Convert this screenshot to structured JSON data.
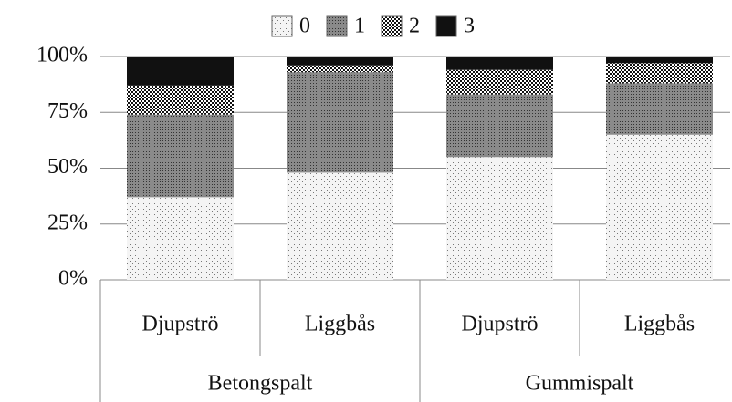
{
  "chart_data": {
    "type": "stacked-bar",
    "groups": [
      {
        "name": "Betongspalt",
        "categories": [
          "Djupströ",
          "Liggbås"
        ]
      },
      {
        "name": "Gummispalt",
        "categories": [
          "Djupströ",
          "Liggbås"
        ]
      }
    ],
    "series": [
      {
        "name": "0",
        "color": "#f4f4f4",
        "pattern": "sparse-dots",
        "values": [
          37,
          48,
          55,
          65
        ]
      },
      {
        "name": "1",
        "color": "#8a8a8a",
        "pattern": "dense-dots",
        "values": [
          37,
          45,
          28,
          23
        ]
      },
      {
        "name": "2",
        "color": "#ffffff",
        "pattern": "checker",
        "values": [
          13,
          3,
          11,
          9
        ]
      },
      {
        "name": "3",
        "color": "#111111",
        "pattern": "solid",
        "values": [
          13,
          4,
          6,
          3
        ]
      }
    ],
    "ylim": [
      0,
      100
    ],
    "yticks": [
      {
        "value": 0,
        "label": "0%"
      },
      {
        "value": 25,
        "label": "25%"
      },
      {
        "value": 50,
        "label": "50%"
      },
      {
        "value": 75,
        "label": "75%"
      },
      {
        "value": 100,
        "label": "100%"
      }
    ],
    "grid": true,
    "legend": "top"
  }
}
